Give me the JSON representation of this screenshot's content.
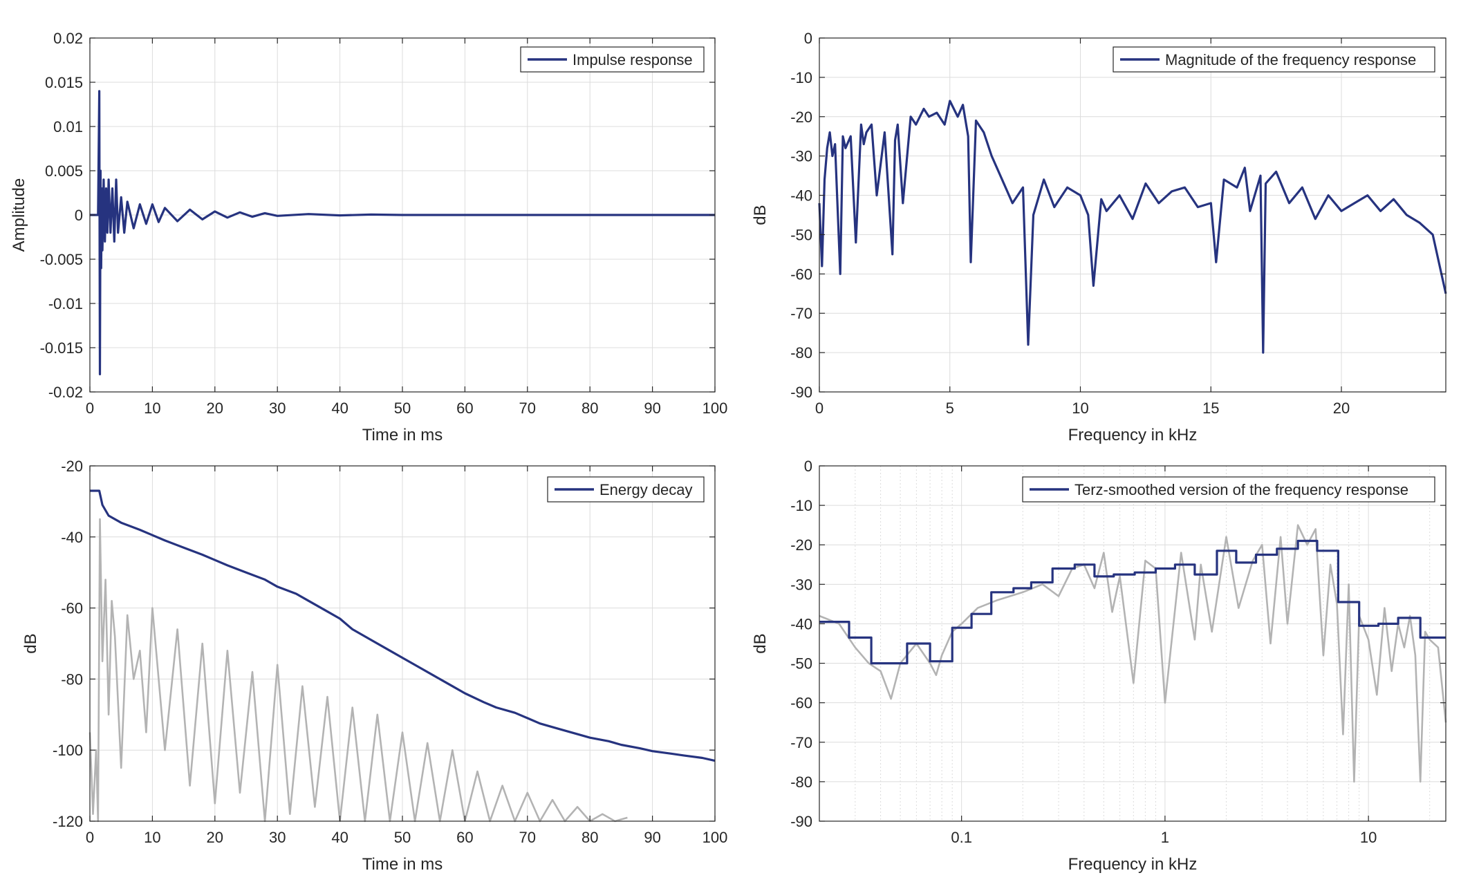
{
  "figure": {
    "background": "#ffffff",
    "axis_color": "#262626",
    "grid_color": "#dcdcdc",
    "series_color": "#26337f",
    "raw_color": "#b3b3b3"
  },
  "chart_data": [
    {
      "id": "impulse",
      "type": "line",
      "title": "",
      "xlabel": "Time in ms",
      "ylabel": "Amplitude",
      "xlim": [
        0,
        100
      ],
      "ylim": [
        -0.02,
        0.02
      ],
      "xscale": "linear",
      "xticks": [
        0,
        10,
        20,
        30,
        40,
        50,
        60,
        70,
        80,
        90,
        100
      ],
      "xtick_labels": [
        "0",
        "10",
        "20",
        "30",
        "40",
        "50",
        "60",
        "70",
        "80",
        "90",
        "100"
      ],
      "yticks": [
        0.02,
        0.015,
        0.01,
        0.005,
        0,
        -0.005,
        -0.01,
        -0.015,
        -0.02
      ],
      "ytick_labels": [
        "0.02",
        "0.015",
        "0.01",
        "0.005",
        "0",
        "-0.005",
        "-0.01",
        "-0.015",
        "-0.02"
      ],
      "grid": true,
      "legend": {
        "position": "top-right",
        "entries": [
          "Impulse response"
        ]
      },
      "series": [
        {
          "name": "Impulse response",
          "color": "#26337f",
          "x": [
            0,
            1.3,
            1.5,
            1.6,
            1.7,
            1.8,
            1.9,
            2.0,
            2.2,
            2.4,
            2.6,
            2.8,
            3.0,
            3.3,
            3.6,
            3.9,
            4.2,
            4.5,
            5.0,
            5.5,
            6.0,
            7.0,
            8.0,
            9.0,
            10,
            11,
            12,
            14,
            16,
            18,
            20,
            22,
            24,
            26,
            28,
            30,
            35,
            40,
            45,
            50,
            55,
            60,
            65,
            70,
            75,
            80,
            85,
            90,
            95,
            100
          ],
          "y": [
            0,
            0,
            0.014,
            -0.018,
            0.005,
            -0.006,
            0.003,
            -0.004,
            0.004,
            -0.003,
            0.003,
            -0.002,
            0.004,
            -0.002,
            0.003,
            -0.003,
            0.004,
            -0.002,
            0.002,
            -0.002,
            0.0015,
            -0.0015,
            0.0012,
            -0.001,
            0.0012,
            -0.0008,
            0.0008,
            -0.0007,
            0.0006,
            -0.0005,
            0.0004,
            -0.0003,
            0.0003,
            -0.0002,
            0.0002,
            -0.0001,
            0.0001,
            -5e-05,
            5e-05,
            0,
            0,
            0,
            0,
            0,
            0,
            0,
            0,
            0,
            0,
            0
          ]
        }
      ]
    },
    {
      "id": "magnitude",
      "type": "line",
      "title": "",
      "xlabel": "Frequency in kHz",
      "ylabel": "dB",
      "xlim": [
        0,
        24
      ],
      "ylim": [
        -90,
        0
      ],
      "xscale": "linear",
      "xticks": [
        0,
        5,
        10,
        15,
        20
      ],
      "xtick_labels": [
        "0",
        "5",
        "10",
        "15",
        "20"
      ],
      "yticks": [
        0,
        -10,
        -20,
        -30,
        -40,
        -50,
        -60,
        -70,
        -80,
        -90
      ],
      "ytick_labels": [
        "0",
        "-10",
        "-20",
        "-30",
        "-40",
        "-50",
        "-60",
        "-70",
        "-80",
        "-90"
      ],
      "grid": true,
      "legend": {
        "position": "top-right",
        "entries": [
          "Magnitude of the frequency response"
        ]
      },
      "series": [
        {
          "name": "Magnitude of the frequency response",
          "color": "#26337f",
          "x": [
            0,
            0.1,
            0.2,
            0.3,
            0.4,
            0.5,
            0.6,
            0.8,
            0.9,
            1.0,
            1.2,
            1.4,
            1.6,
            1.7,
            1.8,
            2.0,
            2.2,
            2.5,
            2.8,
            2.9,
            3.0,
            3.2,
            3.5,
            3.7,
            4.0,
            4.2,
            4.5,
            4.8,
            5.0,
            5.3,
            5.5,
            5.7,
            5.8,
            6.0,
            6.3,
            6.6,
            7.0,
            7.4,
            7.8,
            8.0,
            8.2,
            8.6,
            9.0,
            9.5,
            10.0,
            10.3,
            10.5,
            10.8,
            11.0,
            11.5,
            12.0,
            12.5,
            13.0,
            13.5,
            14.0,
            14.5,
            15.0,
            15.2,
            15.5,
            16.0,
            16.3,
            16.5,
            16.9,
            17.0,
            17.1,
            17.5,
            18.0,
            18.5,
            19.0,
            19.5,
            20.0,
            20.5,
            21.0,
            21.5,
            22.0,
            22.5,
            23.0,
            23.5,
            24.0
          ],
          "y": [
            -42,
            -58,
            -36,
            -28,
            -24,
            -30,
            -27,
            -60,
            -25,
            -28,
            -25,
            -52,
            -22,
            -27,
            -24,
            -22,
            -40,
            -24,
            -55,
            -26,
            -22,
            -42,
            -20,
            -22,
            -18,
            -20,
            -19,
            -22,
            -16,
            -20,
            -17,
            -25,
            -57,
            -21,
            -24,
            -30,
            -36,
            -42,
            -38,
            -78,
            -45,
            -36,
            -43,
            -38,
            -40,
            -45,
            -63,
            -41,
            -44,
            -40,
            -46,
            -37,
            -42,
            -39,
            -38,
            -43,
            -42,
            -57,
            -36,
            -38,
            -33,
            -44,
            -35,
            -80,
            -37,
            -34,
            -42,
            -38,
            -46,
            -40,
            -44,
            -42,
            -40,
            -44,
            -41,
            -45,
            -47,
            -50,
            -65
          ]
        }
      ]
    },
    {
      "id": "energy-decay",
      "type": "line",
      "title": "",
      "xlabel": "Time in ms",
      "ylabel": "dB",
      "xlim": [
        0,
        100
      ],
      "ylim": [
        -120,
        -20
      ],
      "xscale": "linear",
      "xticks": [
        0,
        10,
        20,
        30,
        40,
        50,
        60,
        70,
        80,
        90,
        100
      ],
      "xtick_labels": [
        "0",
        "10",
        "20",
        "30",
        "40",
        "50",
        "60",
        "70",
        "80",
        "90",
        "100"
      ],
      "yticks": [
        -20,
        -40,
        -60,
        -80,
        -100,
        -120
      ],
      "ytick_labels": [
        "-20",
        "-40",
        "-60",
        "-80",
        "-100",
        "-120"
      ],
      "grid": true,
      "legend": {
        "position": "top-right",
        "entries": [
          "Energy decay"
        ]
      },
      "series": [
        {
          "name": "",
          "color": "#b3b3b3",
          "x": [
            0,
            0.5,
            1.0,
            1.3,
            1.6,
            2.0,
            2.5,
            3,
            3.5,
            4,
            5,
            6,
            7,
            8,
            9,
            10,
            12,
            14,
            16,
            18,
            20,
            22,
            24,
            26,
            28,
            30,
            32,
            34,
            36,
            38,
            40,
            42,
            44,
            46,
            48,
            50,
            52,
            54,
            56,
            58,
            60,
            62,
            64,
            66,
            68,
            70,
            72,
            74,
            76,
            78,
            80,
            82,
            84,
            86
          ],
          "y": [
            -95,
            -118,
            -100,
            -120,
            -35,
            -75,
            -52,
            -90,
            -58,
            -68,
            -105,
            -62,
            -80,
            -72,
            -95,
            -60,
            -100,
            -66,
            -110,
            -70,
            -115,
            -72,
            -112,
            -78,
            -120,
            -76,
            -118,
            -82,
            -116,
            -85,
            -120,
            -88,
            -120,
            -90,
            -120,
            -95,
            -120,
            -98,
            -120,
            -100,
            -120,
            -106,
            -120,
            -110,
            -120,
            -112,
            -120,
            -114,
            -120,
            -116,
            -120,
            -118,
            -120,
            -119
          ]
        },
        {
          "name": "Energy decay",
          "color": "#26337f",
          "x": [
            0,
            1.5,
            2,
            3,
            5,
            8,
            10,
            12,
            15,
            18,
            20,
            22,
            25,
            28,
            30,
            33,
            35,
            38,
            40,
            42,
            45,
            48,
            50,
            53,
            55,
            58,
            60,
            63,
            65,
            68,
            70,
            72,
            75,
            78,
            80,
            83,
            85,
            88,
            90,
            93,
            95,
            98,
            100
          ],
          "y": [
            -27,
            -27,
            -31,
            -34,
            -36,
            -38,
            -39.5,
            -41,
            -43,
            -45,
            -46.5,
            -48,
            -50,
            -52,
            -54,
            -56,
            -58,
            -61,
            -63,
            -66,
            -69,
            -72,
            -74,
            -77,
            -79,
            -82,
            -84,
            -86.5,
            -88,
            -89.5,
            -91,
            -92.5,
            -94,
            -95.5,
            -96.5,
            -97.5,
            -98.5,
            -99.5,
            -100.3,
            -101,
            -101.5,
            -102.2,
            -103
          ]
        }
      ]
    },
    {
      "id": "terz",
      "type": "line",
      "title": "",
      "xlabel": "Frequency in kHz",
      "ylabel": "dB",
      "xlim": [
        0.02,
        24
      ],
      "ylim": [
        -90,
        0
      ],
      "xscale": "log",
      "xticks": [
        0.1,
        1,
        10
      ],
      "xtick_labels": [
        "0.1",
        "1",
        "10"
      ],
      "yticks": [
        0,
        -10,
        -20,
        -30,
        -40,
        -50,
        -60,
        -70,
        -80,
        -90
      ],
      "ytick_labels": [
        "0",
        "-10",
        "-20",
        "-30",
        "-40",
        "-50",
        "-60",
        "-70",
        "-80",
        "-90"
      ],
      "grid": true,
      "legend": {
        "position": "top-right",
        "entries": [
          "Terz-smoothed version of the frequency response"
        ]
      },
      "series": [
        {
          "name": "",
          "color": "#b3b3b3",
          "x": [
            0.02,
            0.025,
            0.03,
            0.035,
            0.04,
            0.045,
            0.05,
            0.06,
            0.07,
            0.075,
            0.08,
            0.09,
            0.1,
            0.12,
            0.15,
            0.2,
            0.25,
            0.3,
            0.35,
            0.4,
            0.45,
            0.5,
            0.55,
            0.6,
            0.7,
            0.8,
            0.9,
            1.0,
            1.2,
            1.4,
            1.5,
            1.7,
            2.0,
            2.3,
            2.7,
            3.0,
            3.3,
            3.7,
            4.0,
            4.5,
            5.0,
            5.5,
            6.0,
            6.5,
            7.0,
            7.5,
            8.0,
            8.5,
            9.0,
            10.0,
            11,
            12,
            13,
            14,
            15,
            16,
            17,
            18,
            19,
            20,
            22,
            24
          ],
          "y": [
            -38,
            -40,
            -46,
            -50,
            -52,
            -59,
            -50,
            -45,
            -50,
            -53,
            -48,
            -42,
            -40,
            -36,
            -34,
            -32,
            -30,
            -33,
            -26,
            -25,
            -31,
            -22,
            -37,
            -28,
            -55,
            -24,
            -26,
            -60,
            -22,
            -44,
            -25,
            -42,
            -18,
            -36,
            -24,
            -20,
            -45,
            -18,
            -40,
            -15,
            -20,
            -16,
            -48,
            -25,
            -35,
            -68,
            -30,
            -80,
            -38,
            -44,
            -58,
            -36,
            -52,
            -40,
            -46,
            -38,
            -48,
            -80,
            -42,
            -44,
            -46,
            -65
          ]
        },
        {
          "name": "Terz-smoothed version of the frequency response",
          "color": "#26337f",
          "x": [
            0.02,
            0.028,
            0.028,
            0.036,
            0.036,
            0.054,
            0.054,
            0.07,
            0.07,
            0.09,
            0.09,
            0.112,
            0.112,
            0.14,
            0.14,
            0.18,
            0.18,
            0.22,
            0.22,
            0.28,
            0.28,
            0.36,
            0.36,
            0.45,
            0.45,
            0.56,
            0.56,
            0.71,
            0.71,
            0.9,
            0.9,
            1.12,
            1.12,
            1.4,
            1.4,
            1.8,
            1.8,
            2.24,
            2.24,
            2.8,
            2.8,
            3.55,
            3.55,
            4.5,
            4.5,
            5.6,
            5.6,
            7.1,
            7.1,
            9.0,
            9.0,
            11.2,
            11.2,
            14.0,
            14.0,
            18.0,
            18.0,
            24
          ],
          "y": [
            -39.5,
            -39.5,
            -43.5,
            -43.5,
            -50,
            -50,
            -45,
            -45,
            -49.5,
            -49.5,
            -41,
            -41,
            -37.5,
            -37.5,
            -32,
            -32,
            -31,
            -31,
            -29.5,
            -29.5,
            -26,
            -26,
            -25,
            -25,
            -28,
            -28,
            -27.5,
            -27.5,
            -27,
            -27,
            -26,
            -26,
            -25,
            -25,
            -27.5,
            -27.5,
            -21.5,
            -21.5,
            -24.5,
            -24.5,
            -22.5,
            -22.5,
            -21,
            -21,
            -19,
            -19,
            -21.5,
            -21.5,
            -34.5,
            -34.5,
            -40.5,
            -40.5,
            -40,
            -40,
            -38.5,
            -38.5,
            -43.5,
            -43.5
          ]
        }
      ]
    }
  ]
}
